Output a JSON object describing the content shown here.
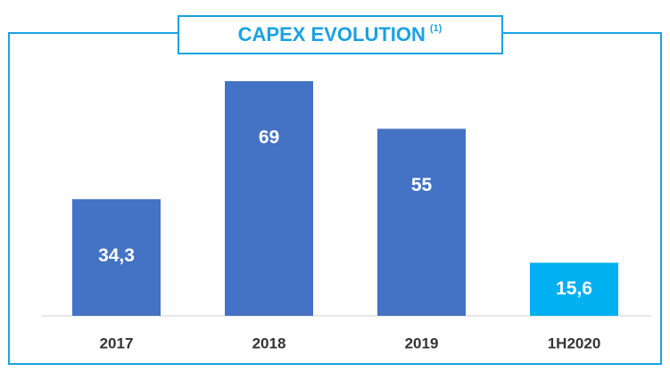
{
  "chart_data": {
    "type": "bar",
    "title": "CAPEX EVOLUTION",
    "title_note": "(1)",
    "categories": [
      "2017",
      "2018",
      "2019",
      "1H2020"
    ],
    "values": [
      34.3,
      69,
      55,
      15.6
    ],
    "value_labels": [
      "34,3",
      "69",
      "55",
      "15,6"
    ],
    "colors": [
      "#4472c4",
      "#4472c4",
      "#4472c4",
      "#00b0f0"
    ]
  }
}
